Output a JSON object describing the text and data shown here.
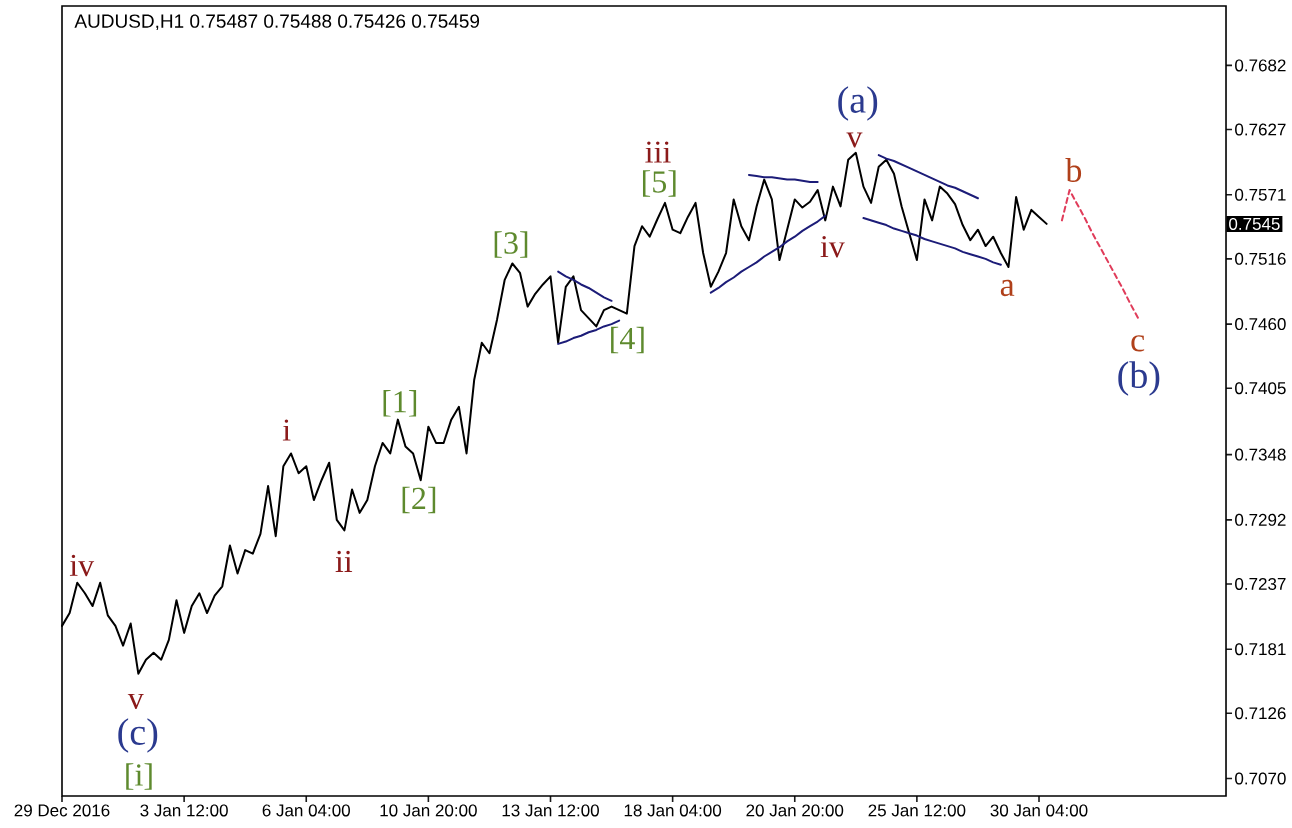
{
  "chart_data": {
    "type": "line",
    "title": "AUDUSD,H1 0.75487 0.75488 0.75426 0.75459",
    "categories": [
      "29 Dec 2016",
      null,
      null,
      null,
      null,
      null,
      null,
      null,
      null,
      null,
      null,
      null,
      null,
      null,
      null,
      null,
      "3 Jan 12:00",
      null,
      null,
      null,
      null,
      null,
      null,
      null,
      null,
      null,
      null,
      null,
      null,
      null,
      null,
      null,
      "6 Jan 04:00",
      null,
      null,
      null,
      null,
      null,
      null,
      null,
      null,
      null,
      null,
      null,
      null,
      null,
      null,
      null,
      "10 Jan 20:00",
      null,
      null,
      null,
      null,
      null,
      null,
      null,
      null,
      null,
      null,
      null,
      null,
      null,
      null,
      null,
      "13 Jan 12:00",
      null,
      null,
      null,
      null,
      null,
      null,
      null,
      null,
      null,
      null,
      null,
      null,
      null,
      null,
      null,
      "18 Jan 04:00",
      null,
      null,
      null,
      null,
      null,
      null,
      null,
      null,
      null,
      null,
      null,
      null,
      null,
      null,
      null,
      "20 Jan 20:00",
      null,
      null,
      null,
      null,
      null,
      null,
      null,
      null,
      null,
      null,
      null,
      null,
      null,
      null,
      null,
      "25 Jan 12:00",
      null,
      null,
      null,
      null,
      null,
      null,
      null,
      null,
      null,
      null,
      null,
      null,
      null,
      null,
      null,
      "30 Jan 04:00",
      null,
      null,
      null,
      null,
      null,
      null,
      null,
      null,
      null,
      null,
      null,
      null,
      null,
      null,
      null,
      null,
      null,
      null,
      null,
      null,
      null,
      null,
      null,
      null
    ],
    "ylim": [
      0.7055,
      0.7733
    ],
    "yticks": [
      {
        "value": 0.707,
        "label": "0.7070"
      },
      0.7126,
      0.7181,
      0.7237,
      0.7292,
      0.7348,
      0.7405,
      {
        "value": 0.746,
        "label": "0.7460"
      },
      0.7516,
      0.7571,
      0.7627,
      0.7682
    ],
    "series": [
      {
        "color": "#000000",
        "values": [
          0.7201,
          0.7212,
          0.7238,
          0.7229,
          0.7218,
          0.7238,
          0.721,
          0.7201,
          0.7184,
          0.7203,
          0.716,
          0.7172,
          0.7178,
          0.7172,
          0.7189,
          0.7223,
          0.7195,
          0.7218,
          0.7229,
          0.7212,
          0.7227,
          0.7235,
          0.727,
          0.7246,
          0.7266,
          0.7263,
          0.728,
          0.7321,
          0.7278,
          0.7338,
          0.7349,
          0.7332,
          0.7338,
          0.7309,
          0.7326,
          0.7341,
          0.7292,
          0.7283,
          0.7318,
          0.7298,
          0.7309,
          0.7338,
          0.7358,
          0.7349,
          0.7378,
          0.7355,
          0.7349,
          0.7326,
          0.7372,
          0.7358,
          0.7358,
          0.7378,
          0.7389,
          0.7349,
          0.7412,
          0.7444,
          0.7435,
          0.7464,
          0.7498,
          0.7512,
          0.7504,
          0.7475,
          0.7486,
          0.7494,
          0.7501,
          0.7444,
          0.7492,
          0.7501,
          0.7472,
          0.7465,
          0.7458,
          0.7472,
          0.7475,
          0.7472,
          0.7469,
          0.7527,
          0.7544,
          0.7535,
          0.755,
          0.7564,
          0.7541,
          0.7538,
          0.7552,
          0.7564,
          0.7521,
          0.7492,
          0.7505,
          0.7521,
          0.7567,
          0.7544,
          0.7532,
          0.7561,
          0.7584,
          0.7567,
          0.7515,
          0.7541,
          0.7567,
          0.756,
          0.7565,
          0.7575,
          0.7549,
          0.7578,
          0.7561,
          0.7601,
          0.7607,
          0.7578,
          0.7564,
          0.7595,
          0.7601,
          0.7589,
          0.7561,
          0.7538,
          0.7515,
          0.7567,
          0.7549,
          0.7578,
          0.7572,
          0.7563,
          0.7545,
          0.7532,
          0.7541,
          0.7527,
          0.7535,
          0.7521,
          0.7509,
          0.7569,
          0.7541,
          0.7558,
          0.7552,
          0.7546,
          null,
          null,
          null,
          null,
          null,
          null,
          null,
          null,
          null,
          null,
          null,
          null,
          null,
          null,
          null,
          null,
          null,
          null,
          null,
          null,
          null,
          null,
          null
        ]
      },
      {
        "type": "line",
        "color": "#1c1c78",
        "values": [
          null,
          null,
          null,
          null,
          null,
          null,
          null,
          null,
          null,
          null,
          null,
          null,
          null,
          null,
          null,
          null,
          null,
          null,
          null,
          null,
          null,
          null,
          null,
          null,
          null,
          null,
          null,
          null,
          null,
          null,
          null,
          null,
          null,
          null,
          null,
          null,
          null,
          null,
          null,
          null,
          null,
          null,
          null,
          null,
          null,
          null,
          null,
          null,
          null,
          null,
          null,
          null,
          null,
          null,
          null,
          null,
          null,
          null,
          null,
          null,
          null,
          null,
          null,
          null,
          null,
          0.7505,
          0.7501,
          0.7498,
          0.7494,
          0.7491,
          0.7487,
          0.7483,
          0.748,
          null,
          null,
          null,
          null,
          null,
          null,
          null,
          null,
          null,
          null,
          null,
          null,
          null,
          null,
          null,
          null,
          null,
          null,
          null,
          null,
          null,
          null,
          null,
          null,
          null,
          null,
          null,
          null,
          null,
          null,
          null,
          null,
          null,
          null,
          null,
          null,
          null,
          null,
          null,
          null,
          null,
          null,
          null,
          null,
          null,
          null,
          null,
          null,
          null,
          null,
          null,
          null,
          null,
          null,
          null,
          null,
          null,
          null,
          null,
          null,
          null,
          null,
          null,
          null,
          null,
          null,
          null,
          null,
          null,
          null,
          null,
          null,
          null,
          null,
          null,
          null,
          null,
          null,
          null,
          null
        ]
      },
      {
        "type": "line",
        "color": "#1c1c78",
        "values": [
          null,
          null,
          null,
          null,
          null,
          null,
          null,
          null,
          null,
          null,
          null,
          null,
          null,
          null,
          null,
          null,
          null,
          null,
          null,
          null,
          null,
          null,
          null,
          null,
          null,
          null,
          null,
          null,
          null,
          null,
          null,
          null,
          null,
          null,
          null,
          null,
          null,
          null,
          null,
          null,
          null,
          null,
          null,
          null,
          null,
          null,
          null,
          null,
          null,
          null,
          null,
          null,
          null,
          null,
          null,
          null,
          null,
          null,
          null,
          null,
          null,
          null,
          null,
          null,
          null,
          0.7443,
          0.7445,
          0.7448,
          0.745,
          0.7453,
          0.7455,
          0.7458,
          0.746,
          0.7463,
          null,
          null,
          null,
          null,
          null,
          null,
          null,
          null,
          null,
          null,
          null,
          null,
          null,
          null,
          null,
          null,
          null,
          null,
          null,
          null,
          null,
          null,
          null,
          null,
          null,
          null,
          null,
          null,
          null,
          null,
          null,
          null,
          null,
          null,
          null,
          null,
          null,
          null,
          null,
          null,
          null,
          null,
          null,
          null,
          null,
          null,
          null,
          null,
          null,
          null,
          null,
          null,
          null,
          null,
          null,
          null,
          null,
          null,
          null,
          null,
          null,
          null,
          null,
          null,
          null,
          null,
          null,
          null,
          null,
          null,
          null,
          null,
          null,
          null,
          null,
          null,
          null,
          null,
          null
        ]
      },
      {
        "type": "line",
        "color": "#1c1c78",
        "values": [
          null,
          null,
          null,
          null,
          null,
          null,
          null,
          null,
          null,
          null,
          null,
          null,
          null,
          null,
          null,
          null,
          null,
          null,
          null,
          null,
          null,
          null,
          null,
          null,
          null,
          null,
          null,
          null,
          null,
          null,
          null,
          null,
          null,
          null,
          null,
          null,
          null,
          null,
          null,
          null,
          null,
          null,
          null,
          null,
          null,
          null,
          null,
          null,
          null,
          null,
          null,
          null,
          null,
          null,
          null,
          null,
          null,
          null,
          null,
          null,
          null,
          null,
          null,
          null,
          null,
          null,
          null,
          null,
          null,
          null,
          null,
          null,
          null,
          null,
          null,
          null,
          null,
          null,
          null,
          null,
          null,
          null,
          null,
          null,
          null,
          null,
          null,
          null,
          null,
          null,
          0.7588,
          0.7587,
          0.7586,
          0.7586,
          0.7585,
          0.7584,
          0.7584,
          0.7583,
          0.7582,
          0.7582,
          null,
          null,
          null,
          null,
          null,
          null,
          null,
          null,
          null,
          null,
          null,
          null,
          null,
          null,
          null,
          null,
          null,
          null,
          null,
          null,
          null,
          null,
          null,
          null,
          null,
          null,
          null,
          null,
          null,
          null,
          null,
          null,
          null,
          null,
          null,
          null,
          null,
          null,
          null,
          null,
          null,
          null,
          null,
          null,
          null,
          null,
          null,
          null,
          null,
          null,
          null,
          null,
          null
        ]
      },
      {
        "type": "line",
        "color": "#1c1c78",
        "values": [
          null,
          null,
          null,
          null,
          null,
          null,
          null,
          null,
          null,
          null,
          null,
          null,
          null,
          null,
          null,
          null,
          null,
          null,
          null,
          null,
          null,
          null,
          null,
          null,
          null,
          null,
          null,
          null,
          null,
          null,
          null,
          null,
          null,
          null,
          null,
          null,
          null,
          null,
          null,
          null,
          null,
          null,
          null,
          null,
          null,
          null,
          null,
          null,
          null,
          null,
          null,
          null,
          null,
          null,
          null,
          null,
          null,
          null,
          null,
          null,
          null,
          null,
          null,
          null,
          null,
          null,
          null,
          null,
          null,
          null,
          null,
          null,
          null,
          null,
          null,
          null,
          null,
          null,
          null,
          null,
          null,
          null,
          null,
          null,
          null,
          0.7487,
          0.7491,
          0.7496,
          0.75,
          0.7505,
          0.7509,
          0.7513,
          0.7518,
          0.7522,
          0.7526,
          0.7531,
          0.7535,
          0.754,
          0.7544,
          0.7548,
          0.7553,
          null,
          null,
          null,
          null,
          null,
          null,
          null,
          null,
          null,
          null,
          null,
          null,
          null,
          null,
          null,
          null,
          null,
          null,
          null,
          null,
          null,
          null,
          null,
          null,
          null,
          null,
          null,
          null,
          null,
          null,
          null,
          null,
          null,
          null,
          null,
          null,
          null,
          null,
          null,
          null,
          null,
          null,
          null,
          null,
          null,
          null,
          null,
          null,
          null,
          null,
          null,
          null
        ]
      },
      {
        "type": "line",
        "color": "#1c1c78",
        "values": [
          null,
          null,
          null,
          null,
          null,
          null,
          null,
          null,
          null,
          null,
          null,
          null,
          null,
          null,
          null,
          null,
          null,
          null,
          null,
          null,
          null,
          null,
          null,
          null,
          null,
          null,
          null,
          null,
          null,
          null,
          null,
          null,
          null,
          null,
          null,
          null,
          null,
          null,
          null,
          null,
          null,
          null,
          null,
          null,
          null,
          null,
          null,
          null,
          null,
          null,
          null,
          null,
          null,
          null,
          null,
          null,
          null,
          null,
          null,
          null,
          null,
          null,
          null,
          null,
          null,
          null,
          null,
          null,
          null,
          null,
          null,
          null,
          null,
          null,
          null,
          null,
          null,
          null,
          null,
          null,
          null,
          null,
          null,
          null,
          null,
          null,
          null,
          null,
          null,
          null,
          null,
          null,
          null,
          null,
          null,
          null,
          null,
          null,
          null,
          null,
          null,
          null,
          null,
          null,
          null,
          null,
          null,
          0.7605,
          0.7602,
          0.76,
          0.7597,
          0.7594,
          0.7591,
          0.7588,
          0.7585,
          0.7582,
          0.7579,
          0.7577,
          0.7574,
          0.7571,
          0.7568,
          null,
          null,
          null,
          null,
          null,
          null,
          null,
          null,
          null,
          null,
          null,
          null,
          null,
          null,
          null,
          null,
          null,
          null,
          null,
          null,
          null,
          null,
          null,
          null,
          null,
          null,
          null,
          null,
          null,
          null,
          null,
          null
        ]
      },
      {
        "type": "line",
        "color": "#1c1c78",
        "values": [
          null,
          null,
          null,
          null,
          null,
          null,
          null,
          null,
          null,
          null,
          null,
          null,
          null,
          null,
          null,
          null,
          null,
          null,
          null,
          null,
          null,
          null,
          null,
          null,
          null,
          null,
          null,
          null,
          null,
          null,
          null,
          null,
          null,
          null,
          null,
          null,
          null,
          null,
          null,
          null,
          null,
          null,
          null,
          null,
          null,
          null,
          null,
          null,
          null,
          null,
          null,
          null,
          null,
          null,
          null,
          null,
          null,
          null,
          null,
          null,
          null,
          null,
          null,
          null,
          null,
          null,
          null,
          null,
          null,
          null,
          null,
          null,
          null,
          null,
          null,
          null,
          null,
          null,
          null,
          null,
          null,
          null,
          null,
          null,
          null,
          null,
          null,
          null,
          null,
          null,
          null,
          null,
          null,
          null,
          null,
          null,
          null,
          null,
          null,
          null,
          null,
          null,
          null,
          null,
          null,
          0.7551,
          0.7549,
          0.7547,
          0.7545,
          0.7542,
          0.754,
          0.7538,
          0.7536,
          0.7533,
          0.7531,
          0.7529,
          0.7527,
          0.7525,
          0.7522,
          0.752,
          0.7518,
          0.7516,
          0.7513,
          0.7511,
          null,
          null,
          null,
          null,
          null,
          null,
          null,
          null,
          null,
          null,
          null,
          null,
          null,
          null,
          null,
          null,
          null,
          null,
          null,
          null,
          null,
          null,
          null,
          null,
          null,
          null,
          null,
          null,
          null
        ]
      },
      {
        "type": "line",
        "color": "#e03c5a",
        "line_style": "dashed",
        "values": [
          null,
          null,
          null,
          null,
          null,
          null,
          null,
          null,
          null,
          null,
          null,
          null,
          null,
          null,
          null,
          null,
          null,
          null,
          null,
          null,
          null,
          null,
          null,
          null,
          null,
          null,
          null,
          null,
          null,
          null,
          null,
          null,
          null,
          null,
          null,
          null,
          null,
          null,
          null,
          null,
          null,
          null,
          null,
          null,
          null,
          null,
          null,
          null,
          null,
          null,
          null,
          null,
          null,
          null,
          null,
          null,
          null,
          null,
          null,
          null,
          null,
          null,
          null,
          null,
          null,
          null,
          null,
          null,
          null,
          null,
          null,
          null,
          null,
          null,
          null,
          null,
          null,
          null,
          null,
          null,
          null,
          null,
          null,
          null,
          null,
          null,
          null,
          null,
          null,
          null,
          null,
          null,
          null,
          null,
          null,
          null,
          null,
          null,
          null,
          null,
          null,
          null,
          null,
          null,
          null,
          null,
          null,
          null,
          null,
          null,
          null,
          null,
          null,
          null,
          null,
          null,
          null,
          null,
          null,
          null,
          null,
          null,
          null,
          null,
          null,
          null,
          null,
          null,
          null,
          null,
          null,
          0.7549,
          0.7575,
          0.7563,
          0.7551,
          0.7538,
          0.7526,
          0.7514,
          0.7502,
          0.749,
          0.7477,
          0.7465,
          null,
          null,
          null,
          null,
          null,
          null,
          null,
          null,
          null,
          null,
          null
        ]
      }
    ],
    "annotations": [
      "iv",
      "v",
      "(c)",
      "[i]",
      "i",
      "ii",
      "[1]",
      "[2]",
      "[3]",
      "[4]",
      "iii",
      "[5]",
      "iv",
      "(a)",
      "v",
      "a",
      "b",
      "c",
      "(b)",
      "0.7545"
    ]
  }
}
